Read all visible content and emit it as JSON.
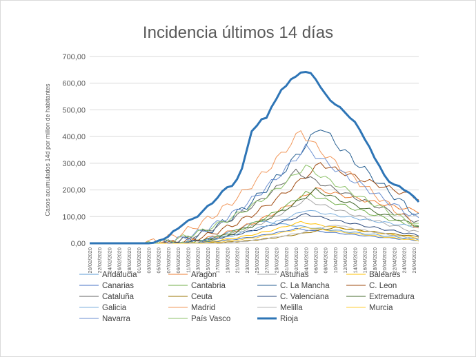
{
  "chart_data": {
    "type": "line",
    "title": "Incidencia últimos 14 días",
    "ylabel": "Casos acumulados 14d por millon de habitantes",
    "ylim": [
      0,
      700
    ],
    "yticks": [
      "0,00",
      "100,00",
      "200,00",
      "300,00",
      "400,00",
      "500,00",
      "600,00",
      "700,00"
    ],
    "x": [
      "20/02/2020",
      "21/02/2020",
      "22/02/2020",
      "23/02/2020",
      "24/02/2020",
      "25/02/2020",
      "26/02/2020",
      "27/02/2020",
      "28/02/2020",
      "29/02/2020",
      "01/03/2020",
      "02/03/2020",
      "03/03/2020",
      "04/03/2020",
      "05/03/2020",
      "06/03/2020",
      "07/03/2020",
      "08/03/2020",
      "09/03/2020",
      "10/03/2020",
      "11/03/2020",
      "12/03/2020",
      "13/03/2020",
      "14/03/2020",
      "15/03/2020",
      "16/03/2020",
      "17/03/2020",
      "18/03/2020",
      "19/03/2020",
      "20/03/2020",
      "21/03/2020",
      "22/03/2020",
      "23/03/2020",
      "24/03/2020",
      "25/03/2020",
      "26/03/2020",
      "27/03/2020",
      "28/03/2020",
      "29/03/2020",
      "30/03/2020",
      "31/03/2020",
      "01/04/2020",
      "02/04/2020",
      "03/04/2020",
      "04/04/2020",
      "05/04/2020",
      "06/04/2020",
      "07/04/2020",
      "08/04/2020",
      "09/04/2020",
      "10/04/2020",
      "11/04/2020",
      "12/04/2020",
      "13/04/2020",
      "14/04/2020",
      "15/04/2020",
      "16/04/2020",
      "17/04/2020",
      "18/04/2020",
      "19/04/2020",
      "20/04/2020",
      "21/04/2020",
      "22/04/2020",
      "23/04/2020",
      "24/04/2020",
      "25/04/2020",
      "26/04/2020",
      "27/04/2020"
    ],
    "xticks": [
      "20/02/2020",
      "22/02/2020",
      "24/02/2020",
      "26/02/2020",
      "28/02/2020",
      "01/03/2020",
      "03/03/2020",
      "05/03/2020",
      "07/03/2020",
      "09/03/2020",
      "11/03/2020",
      "13/03/2020",
      "15/03/2020",
      "17/03/2020",
      "19/03/2020",
      "21/03/2020",
      "23/03/2020",
      "25/03/2020",
      "27/03/2020",
      "29/03/2020",
      "31/03/2020",
      "02/04/2020",
      "04/04/2020",
      "06/04/2020",
      "08/04/2020",
      "10/04/2020",
      "12/04/2020",
      "14/04/2020",
      "16/04/2020",
      "18/04/2020",
      "20/04/2020",
      "22/04/2020",
      "24/04/2020",
      "26/04/2020"
    ],
    "series": [
      {
        "name": "Andalucia",
        "color": "#5b9bd5",
        "width": 1,
        "start": 17,
        "peak": 34,
        "peakv": 85,
        "end": 15
      },
      {
        "name": "Aragon",
        "color": "#ed7d31",
        "width": 1,
        "start": 16,
        "peak": 46,
        "peakv": 205,
        "end": 120
      },
      {
        "name": "Asturias",
        "color": "#a5a5a5",
        "width": 1,
        "start": 18,
        "peak": 44,
        "peakv": 165,
        "end": 40
      },
      {
        "name": "Baleares",
        "color": "#ffc000",
        "width": 1,
        "start": 18,
        "peak": 43,
        "peakv": 80,
        "end": 20
      },
      {
        "name": "Canarias",
        "color": "#4472c4",
        "width": 1,
        "start": 18,
        "peak": 42,
        "peakv": 55,
        "end": 10
      },
      {
        "name": "Cantabria",
        "color": "#70ad47",
        "width": 1,
        "start": 18,
        "peak": 44,
        "peakv": 190,
        "end": 60
      },
      {
        "name": "C. La Mancha",
        "color": "#255e91",
        "width": 1,
        "start": 15,
        "peak": 47,
        "peakv": 440,
        "end": 100
      },
      {
        "name": "C. Leon",
        "color": "#9e480e",
        "width": 1,
        "start": 15,
        "peak": 47,
        "peakv": 300,
        "end": 170
      },
      {
        "name": "Cataluña",
        "color": "#636363",
        "width": 1,
        "start": 13,
        "peak": 42,
        "peakv": 270,
        "end": 80
      },
      {
        "name": "Ceuta",
        "color": "#997300",
        "width": 1,
        "start": 22,
        "peak": 50,
        "peakv": 60,
        "end": 25
      },
      {
        "name": "C. Valenciana",
        "color": "#264478",
        "width": 1,
        "start": 15,
        "peak": 44,
        "peakv": 110,
        "end": 30
      },
      {
        "name": "Extremadura",
        "color": "#43682b",
        "width": 1,
        "start": 18,
        "peak": 46,
        "peakv": 200,
        "end": 65
      },
      {
        "name": "Galicia",
        "color": "#7cafdd",
        "width": 1,
        "start": 17,
        "peak": 44,
        "peakv": 125,
        "end": 60
      },
      {
        "name": "Madrid",
        "color": "#f1975a",
        "width": 1,
        "start": 10,
        "peak": 43,
        "peakv": 420,
        "end": 60
      },
      {
        "name": "Melilla",
        "color": "#b7b7b7",
        "width": 1,
        "start": 24,
        "peak": 50,
        "peakv": 70,
        "end": 15
      },
      {
        "name": "Murcia",
        "color": "#ffcd33",
        "width": 1,
        "start": 20,
        "peak": 44,
        "peakv": 60,
        "end": 10
      },
      {
        "name": "Navarra",
        "color": "#698ed0",
        "width": 1,
        "start": 13,
        "peak": 44,
        "peakv": 360,
        "end": 90
      },
      {
        "name": "País Vasco",
        "color": "#8cc168",
        "width": 1,
        "start": 11,
        "peak": 44,
        "peakv": 290,
        "end": 65
      },
      {
        "name": "Rioja",
        "color": "#2e75b6",
        "width": 3,
        "start": 0,
        "peak": 0,
        "peakv": 0,
        "end": 0,
        "values": [
          0,
          0,
          0,
          0,
          0,
          0,
          0,
          0,
          0,
          0,
          0,
          0,
          0,
          2,
          10,
          15,
          25,
          45,
          55,
          70,
          85,
          92,
          100,
          120,
          140,
          150,
          170,
          195,
          210,
          215,
          240,
          280,
          350,
          420,
          440,
          465,
          470,
          510,
          540,
          575,
          590,
          615,
          625,
          640,
          642,
          638,
          615,
          585,
          560,
          535,
          520,
          510,
          490,
          470,
          455,
          425,
          390,
          360,
          320,
          290,
          255,
          230,
          220,
          215,
          200,
          190,
          175,
          155
        ]
      }
    ],
    "legend_position": "bottom",
    "grid": true
  }
}
